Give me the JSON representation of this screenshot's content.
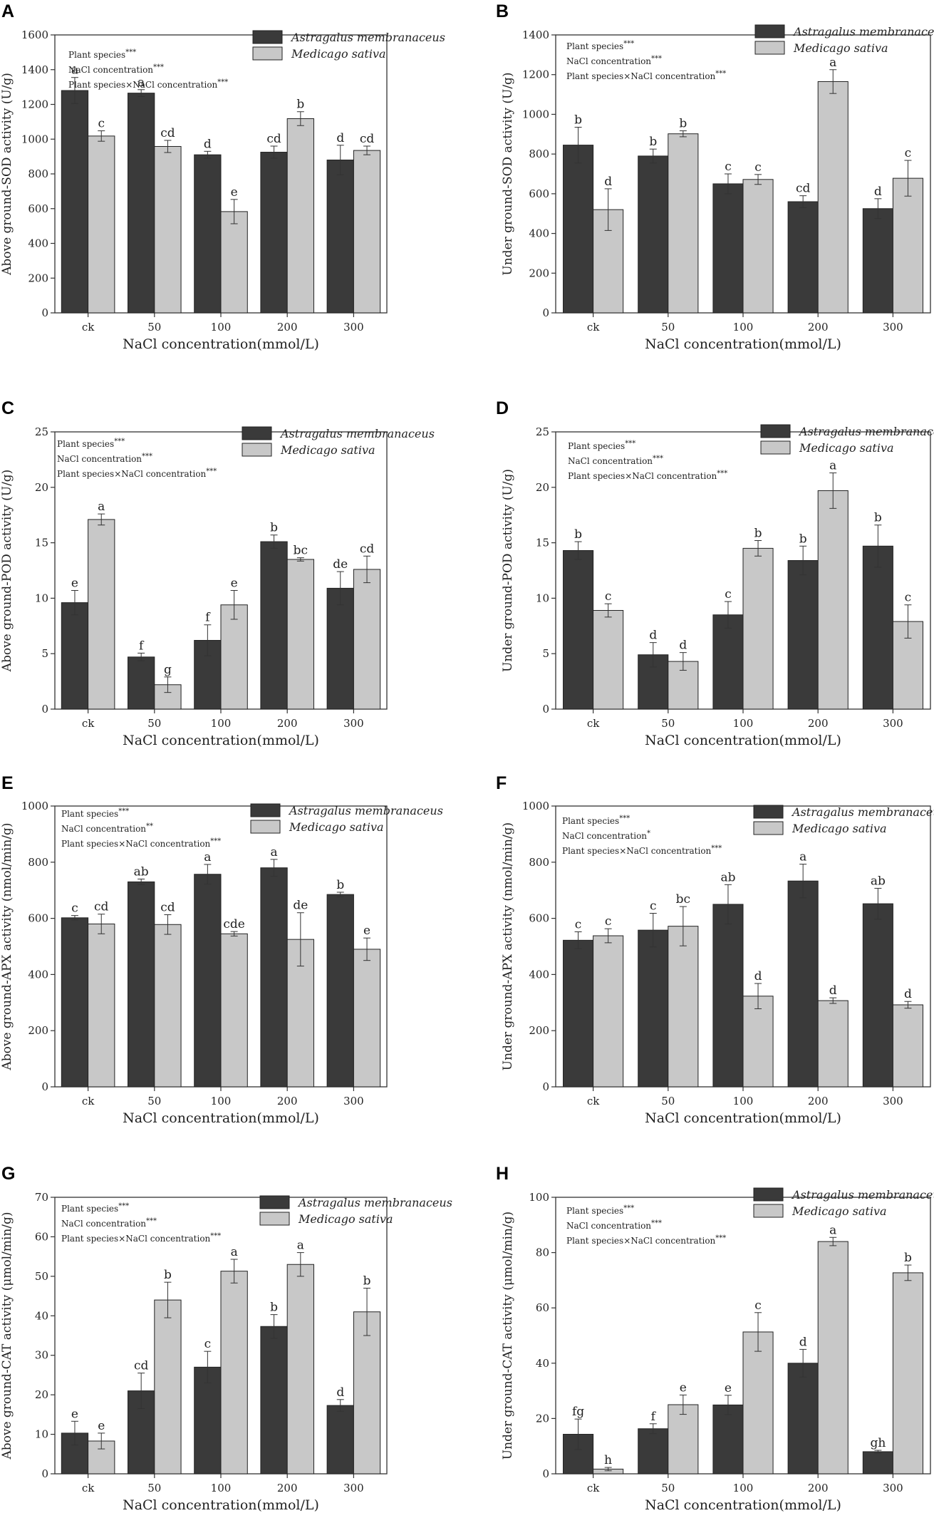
{
  "figure": {
    "xlabel": "NaCl concentration(mmol/L)",
    "categories": [
      "ck",
      "50",
      "100",
      "200",
      "300"
    ],
    "species": [
      "Astragalus membranaceus",
      "Medicago sativa"
    ],
    "colors": {
      "astragalus": "#3a3a3a",
      "medicago": "#c8c8c8",
      "axis": "#333333"
    }
  },
  "chart_data": [
    {
      "id": "A",
      "type": "bar",
      "ylabel": "Above ground-SOD activity (U/g)",
      "ylim": [
        0,
        1600
      ],
      "yticks": [
        0,
        200,
        400,
        600,
        800,
        1000,
        1200,
        1400,
        1600
      ],
      "stats": [
        {
          "text": "Plant species",
          "sig": "***"
        },
        {
          "text": "NaCl concentration",
          "sig": "***"
        },
        {
          "text": "Plant species×NaCl concentration",
          "sig": "***"
        }
      ],
      "series": [
        {
          "name": "Astragalus membranaceus",
          "values": [
            1280,
            1265,
            910,
            925,
            880
          ],
          "errors": [
            75,
            20,
            20,
            35,
            85
          ],
          "letters": [
            "a",
            "a",
            "d",
            "cd",
            "d"
          ]
        },
        {
          "name": "Medicago sativa",
          "values": [
            1018,
            958,
            583,
            1118,
            935
          ],
          "errors": [
            30,
            35,
            70,
            40,
            25
          ],
          "letters": [
            "c",
            "cd",
            "e",
            "b",
            "cd"
          ]
        }
      ]
    },
    {
      "id": "B",
      "type": "bar",
      "ylabel": "Under ground-SOD activity (U/g)",
      "ylim": [
        0,
        1400
      ],
      "yticks": [
        0,
        200,
        400,
        600,
        800,
        1000,
        1200,
        1400
      ],
      "stats": [
        {
          "text": "Plant species",
          "sig": "***"
        },
        {
          "text": "NaCl concentration",
          "sig": "***"
        },
        {
          "text": "Plant species×NaCl concentration",
          "sig": "***"
        }
      ],
      "series": [
        {
          "name": "Astragalus membranaceus",
          "values": [
            845,
            790,
            650,
            560,
            525
          ],
          "errors": [
            90,
            35,
            50,
            30,
            50
          ],
          "letters": [
            "b",
            "b",
            "c",
            "cd",
            "d"
          ]
        },
        {
          "name": "Medicago sativa",
          "values": [
            520,
            902,
            672,
            1165,
            678
          ],
          "errors": [
            105,
            15,
            25,
            60,
            90
          ],
          "letters": [
            "d",
            "b",
            "c",
            "a",
            "c"
          ]
        }
      ]
    },
    {
      "id": "C",
      "type": "bar",
      "ylabel": "Above ground-POD activity (U/g)",
      "ylim": [
        0,
        25
      ],
      "yticks": [
        0,
        5,
        10,
        15,
        20,
        25
      ],
      "stats": [
        {
          "text": "Plant species",
          "sig": "***"
        },
        {
          "text": "NaCl concentration",
          "sig": "***"
        },
        {
          "text": "Plant species×NaCl concentration",
          "sig": "***"
        }
      ],
      "series": [
        {
          "name": "Astragalus membranaceus",
          "values": [
            9.6,
            4.7,
            6.2,
            15.1,
            10.9
          ],
          "errors": [
            1.1,
            0.35,
            1.4,
            0.6,
            1.5
          ],
          "letters": [
            "e",
            "f",
            "f",
            "b",
            "de"
          ]
        },
        {
          "name": "Medicago sativa",
          "values": [
            17.1,
            2.2,
            9.4,
            13.5,
            12.6
          ],
          "errors": [
            0.5,
            0.7,
            1.3,
            0.15,
            1.2
          ],
          "letters": [
            "a",
            "g",
            "e",
            "bc",
            "cd"
          ]
        }
      ]
    },
    {
      "id": "D",
      "type": "bar",
      "ylabel": "Under ground-POD activity (U/g)",
      "ylim": [
        0,
        25
      ],
      "yticks": [
        0,
        5,
        10,
        15,
        20,
        25
      ],
      "stats": [
        {
          "text": "Plant species",
          "sig": "***"
        },
        {
          "text": "NaCl concentration",
          "sig": "***"
        },
        {
          "text": "Plant species×NaCl concentration",
          "sig": "***"
        }
      ],
      "series": [
        {
          "name": "Astragalus membranaceus",
          "values": [
            14.3,
            4.9,
            8.5,
            13.4,
            14.7
          ],
          "errors": [
            0.8,
            1.1,
            1.2,
            1.3,
            1.9
          ],
          "letters": [
            "b",
            "d",
            "c",
            "b",
            "b"
          ]
        },
        {
          "name": "Medicago sativa",
          "values": [
            8.9,
            4.3,
            14.5,
            19.7,
            7.9
          ],
          "errors": [
            0.6,
            0.8,
            0.7,
            1.6,
            1.5
          ],
          "letters": [
            "c",
            "d",
            "b",
            "a",
            "c"
          ]
        }
      ]
    },
    {
      "id": "E",
      "type": "bar",
      "ylabel": "Above ground-APX activity (nmol/min/g)",
      "ylim": [
        0,
        1000
      ],
      "yticks": [
        0,
        200,
        400,
        600,
        800,
        1000
      ],
      "stats": [
        {
          "text": "Plant species",
          "sig": "***"
        },
        {
          "text": "NaCl concentration",
          "sig": "**"
        },
        {
          "text": "Plant species×NaCl concentration",
          "sig": "***"
        }
      ],
      "series": [
        {
          "name": "Astragalus membranaceus",
          "values": [
            602,
            730,
            757,
            780,
            685
          ],
          "errors": [
            8,
            10,
            35,
            30,
            8
          ],
          "letters": [
            "c",
            "ab",
            "a",
            "a",
            "b"
          ]
        },
        {
          "name": "Medicago sativa",
          "values": [
            580,
            578,
            545,
            525,
            490
          ],
          "errors": [
            35,
            35,
            8,
            95,
            40
          ],
          "letters": [
            "cd",
            "cd",
            "cde",
            "de",
            "e"
          ]
        }
      ]
    },
    {
      "id": "F",
      "type": "bar",
      "ylabel": "Under ground-APX activity (nmol/min/g)",
      "ylim": [
        0,
        1000
      ],
      "yticks": [
        0,
        200,
        400,
        600,
        800,
        1000
      ],
      "stats": [
        {
          "text": "Plant species",
          "sig": "***"
        },
        {
          "text": "NaCl concentration",
          "sig": "*"
        },
        {
          "text": "Plant species×NaCl concentration",
          "sig": "***"
        }
      ],
      "series": [
        {
          "name": "Astragalus membranaceus",
          "values": [
            522,
            558,
            650,
            733,
            652
          ],
          "errors": [
            30,
            60,
            70,
            60,
            55
          ],
          "letters": [
            "c",
            "c",
            "ab",
            "a",
            "ab"
          ]
        },
        {
          "name": "Medicago sativa",
          "values": [
            538,
            572,
            323,
            307,
            292
          ],
          "errors": [
            25,
            70,
            45,
            10,
            12
          ],
          "letters": [
            "c",
            "bc",
            "d",
            "d",
            "d"
          ]
        }
      ]
    },
    {
      "id": "G",
      "type": "bar",
      "ylabel": "Above ground-CAT activity (μmol/min/g)",
      "ylim": [
        0,
        70
      ],
      "yticks": [
        0,
        10,
        20,
        30,
        40,
        50,
        60,
        70
      ],
      "stats": [
        {
          "text": "Plant species",
          "sig": "***"
        },
        {
          "text": "NaCl concentration",
          "sig": "***"
        },
        {
          "text": "Plant species×NaCl concentration",
          "sig": "***"
        }
      ],
      "series": [
        {
          "name": "Astragalus membranaceus",
          "values": [
            10.3,
            21.0,
            27.0,
            37.3,
            17.3
          ],
          "errors": [
            3.0,
            4.5,
            4.0,
            3.0,
            1.5
          ],
          "letters": [
            "e",
            "cd",
            "c",
            "b",
            "d"
          ]
        },
        {
          "name": "Medicago sativa",
          "values": [
            8.3,
            44.0,
            51.3,
            53.0,
            41.0
          ],
          "errors": [
            2.0,
            4.5,
            3.0,
            3.0,
            6.0
          ],
          "letters": [
            "e",
            "b",
            "a",
            "a",
            "b"
          ]
        }
      ]
    },
    {
      "id": "H",
      "type": "bar",
      "ylabel": "Under ground-CAT activity (μmol/min/g)",
      "ylim": [
        0,
        100
      ],
      "yticks": [
        0,
        20,
        40,
        60,
        80,
        100
      ],
      "stats": [
        {
          "text": "Plant species",
          "sig": "***"
        },
        {
          "text": "NaCl concentration",
          "sig": "***"
        },
        {
          "text": "Plant species×NaCl concentration",
          "sig": "***"
        }
      ],
      "series": [
        {
          "name": "Astragalus membranaceus",
          "values": [
            14.3,
            16.3,
            24.9,
            40.0,
            8.0
          ],
          "errors": [
            5.5,
            1.8,
            3.5,
            5.0,
            0.5
          ],
          "letters": [
            "fg",
            "f",
            "e",
            "d",
            "gh"
          ]
        },
        {
          "name": "Medicago sativa",
          "values": [
            1.7,
            25.0,
            51.3,
            84.0,
            72.7
          ],
          "errors": [
            0.6,
            3.5,
            7.0,
            1.5,
            2.8
          ],
          "letters": [
            "h",
            "e",
            "c",
            "a",
            "b"
          ]
        }
      ]
    }
  ]
}
